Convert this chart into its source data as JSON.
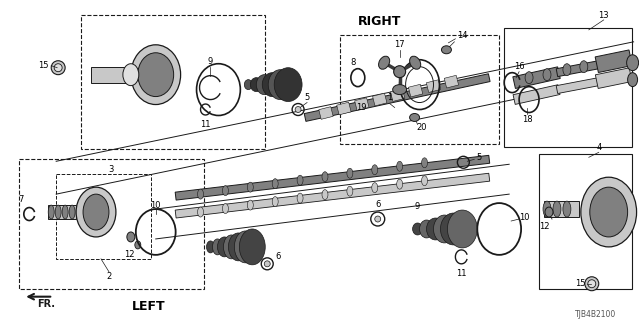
{
  "bg_color": "#ffffff",
  "line_color": "#1a1a1a",
  "diagram_id": "TJB4B2100",
  "right_label": "RIGHT",
  "left_label": "LEFT",
  "fr_label": "FR.",
  "gray_dark": "#3a3a3a",
  "gray_mid": "#808080",
  "gray_light": "#c8c8c8",
  "gray_lighter": "#e0e0e0"
}
